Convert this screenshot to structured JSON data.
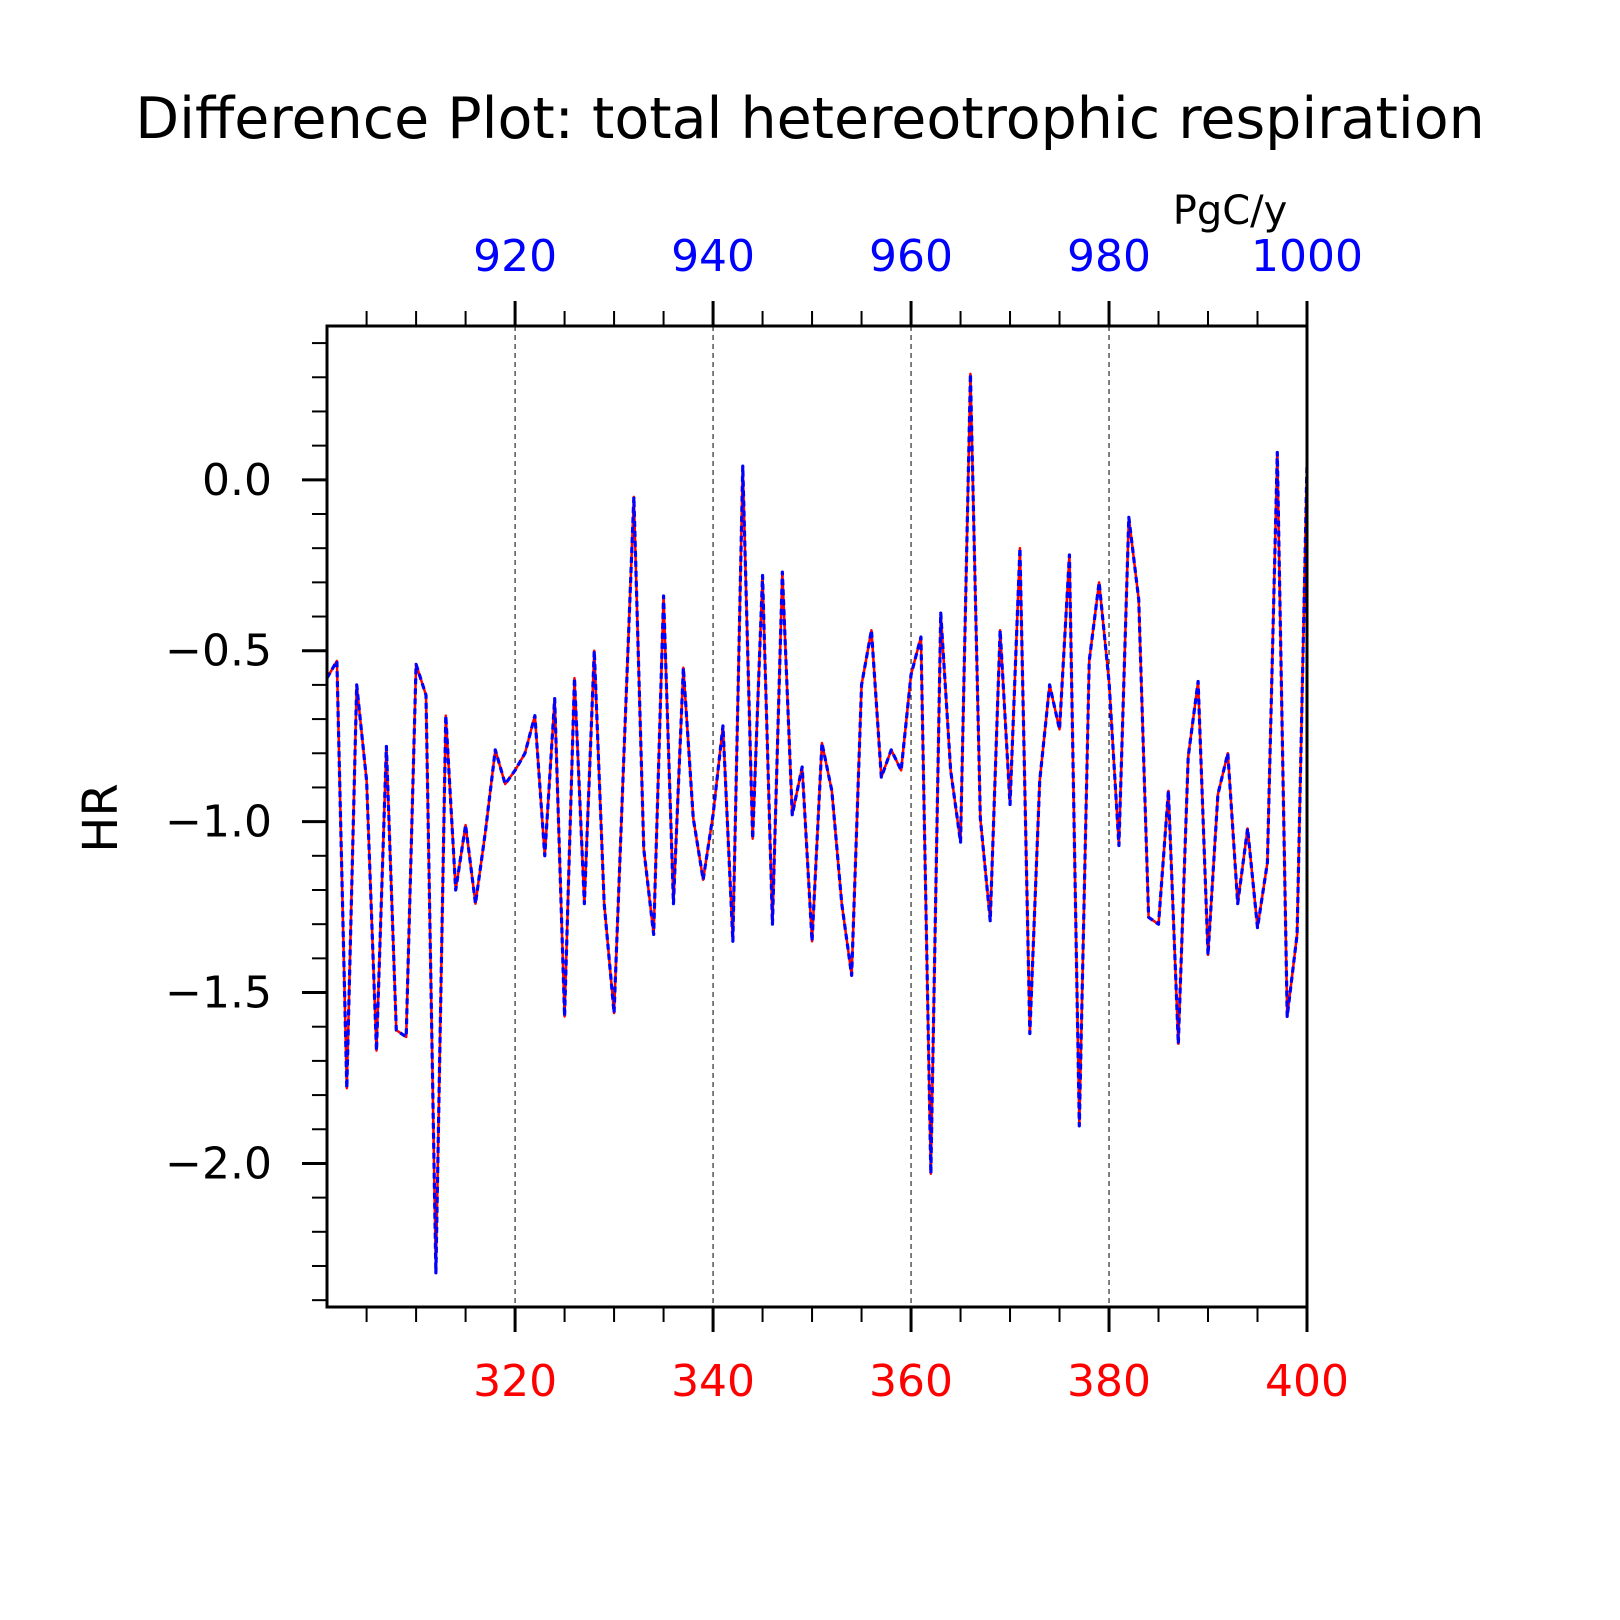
{
  "chart_data": {
    "type": "line",
    "title": "Difference Plot: total hetereotrophic respiration",
    "units_label": "PgC/y",
    "ylabel": "HR",
    "ylim": [
      -2.42,
      0.45
    ],
    "yticks": [
      -2.0,
      -1.5,
      -1.0,
      -0.5,
      0.0
    ],
    "ytick_labels": [
      "−2.0",
      "−1.5",
      "−1.0",
      "−0.5",
      "0.0"
    ],
    "bottom_axis": {
      "color": "#ff0000",
      "range": [
        301,
        400
      ],
      "ticks": [
        320,
        340,
        360,
        380,
        400
      ],
      "tick_labels": [
        "320",
        "340",
        "360",
        "380",
        "400"
      ]
    },
    "top_axis": {
      "color": "#0000ff",
      "range": [
        901,
        1000
      ],
      "ticks": [
        920,
        940,
        960,
        980,
        1000
      ],
      "tick_labels": [
        "920",
        "940",
        "960",
        "980",
        "1000"
      ]
    },
    "grid": "vertical dashed at major x ticks",
    "colors": {
      "series_bottom": "#ff0000",
      "series_top": "#0000ff",
      "axes": "#000000"
    },
    "series": [
      {
        "axis": "bottom",
        "color": "#ff0000",
        "style": "solid",
        "x_start": 301,
        "x_step": 1,
        "values": [
          -0.58,
          -0.53,
          -1.78,
          -0.6,
          -0.88,
          -1.67,
          -0.78,
          -1.61,
          -1.63,
          -0.54,
          -0.63,
          -2.32,
          -0.69,
          -1.2,
          -1.01,
          -1.24,
          -1.03,
          -0.79,
          -0.89,
          -0.85,
          -0.8,
          -0.69,
          -1.1,
          -0.64,
          -1.57,
          -0.58,
          -1.24,
          -0.5,
          -1.24,
          -1.56,
          -0.8,
          -0.05,
          -1.08,
          -1.33,
          -0.34,
          -1.24,
          -0.55,
          -0.99,
          -1.17,
          -0.98,
          -0.72,
          -1.35,
          0.04,
          -1.05,
          -0.28,
          -1.3,
          -0.27,
          -0.98,
          -0.84,
          -1.35,
          -0.77,
          -0.91,
          -1.24,
          -1.45,
          -0.6,
          -0.44,
          -0.87,
          -0.79,
          -0.85,
          -0.57,
          -0.46,
          -2.03,
          -0.39,
          -0.85,
          -1.06,
          0.31,
          -0.99,
          -1.29,
          -0.44,
          -0.95,
          -0.2,
          -1.62,
          -0.88,
          -0.6,
          -0.73,
          -0.22,
          -1.89,
          -0.53,
          -0.3,
          -0.59,
          -1.07,
          -0.11,
          -0.35,
          -1.28,
          -1.3,
          -0.91,
          -1.65,
          -0.81,
          -0.59,
          -1.39,
          -0.92,
          -0.8,
          -1.24,
          -1.02,
          -1.31,
          -1.12,
          0.08,
          -1.57,
          -1.33,
          0.05
        ]
      },
      {
        "axis": "top",
        "color": "#0000ff",
        "style": "dashed",
        "x_start": 901,
        "x_step": 1,
        "values": [
          -0.58,
          -0.53,
          -1.78,
          -0.6,
          -0.88,
          -1.67,
          -0.78,
          -1.61,
          -1.63,
          -0.54,
          -0.63,
          -2.32,
          -0.69,
          -1.2,
          -1.01,
          -1.24,
          -1.03,
          -0.79,
          -0.89,
          -0.85,
          -0.8,
          -0.69,
          -1.1,
          -0.64,
          -1.57,
          -0.58,
          -1.24,
          -0.5,
          -1.24,
          -1.56,
          -0.8,
          -0.05,
          -1.08,
          -1.33,
          -0.34,
          -1.24,
          -0.55,
          -0.99,
          -1.17,
          -0.98,
          -0.72,
          -1.35,
          0.04,
          -1.05,
          -0.28,
          -1.3,
          -0.27,
          -0.98,
          -0.84,
          -1.35,
          -0.77,
          -0.91,
          -1.24,
          -1.45,
          -0.6,
          -0.44,
          -0.87,
          -0.79,
          -0.85,
          -0.57,
          -0.46,
          -2.03,
          -0.39,
          -0.85,
          -1.06,
          0.31,
          -0.99,
          -1.29,
          -0.44,
          -0.95,
          -0.2,
          -1.62,
          -0.88,
          -0.6,
          -0.73,
          -0.22,
          -1.89,
          -0.53,
          -0.3,
          -0.59,
          -1.07,
          -0.11,
          -0.35,
          -1.28,
          -1.3,
          -0.91,
          -1.65,
          -0.81,
          -0.59,
          -1.39,
          -0.92,
          -0.8,
          -1.24,
          -1.02,
          -1.31,
          -1.12,
          0.08,
          -1.57,
          -1.33,
          0.05
        ]
      }
    ]
  }
}
